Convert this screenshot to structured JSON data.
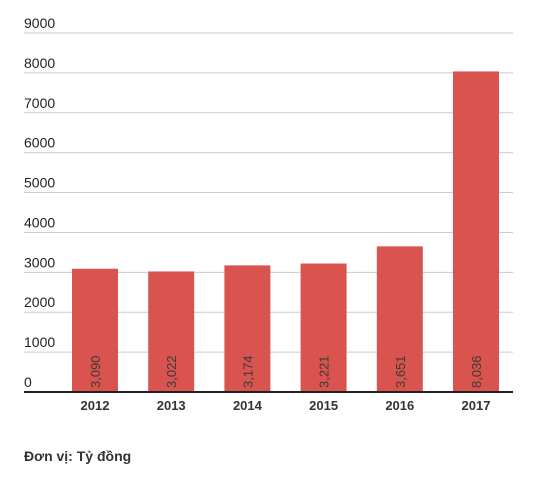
{
  "chart_data": {
    "type": "bar",
    "categories": [
      "2012",
      "2013",
      "2014",
      "2015",
      "2016",
      "2017"
    ],
    "values": [
      3090,
      3022,
      3174,
      3221,
      3651,
      8036
    ],
    "data_labels": [
      "3,090",
      "3,022",
      "3,174",
      "3,221",
      "3,651",
      "8,036"
    ],
    "y_ticks": [
      "0",
      "1000",
      "2000",
      "3000",
      "4000",
      "5000",
      "6000",
      "7000",
      "8000",
      "9000"
    ],
    "ylim": [
      0,
      9000
    ],
    "grid": true,
    "bar_color": "#d9534f",
    "note": "Đơn vị: Tỷ đồng"
  }
}
